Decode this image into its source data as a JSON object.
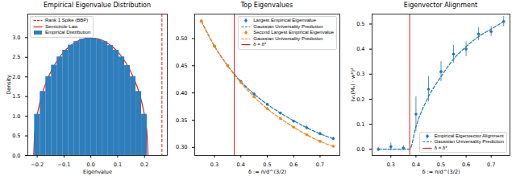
{
  "chart_data": [
    {
      "type": "histogram",
      "title": "Empirical Eigenvalue Distribution",
      "x_label": "Eigenvalue",
      "y_label": "Density",
      "xlim": [
        -0.235,
        0.285
      ],
      "xticks": [
        {
          "value": -0.2,
          "label": "−0.2"
        },
        {
          "value": -0.1,
          "label": "−0.1"
        },
        {
          "value": 0,
          "label": "0.0"
        },
        0.1,
        0.2
      ],
      "ylim": [
        0,
        3.6
      ],
      "yticks": [
        {
          "value": 0,
          "label": "0.0"
        },
        0.5,
        {
          "value": 1,
          "label": "1.0"
        },
        1.5,
        {
          "value": 2,
          "label": "2.0"
        },
        2.5,
        {
          "value": 3,
          "label": "3.0"
        }
      ],
      "grid": false,
      "legend": "upper left",
      "series": [
        {
          "name": "Rank 1 Spike (BBP)",
          "type": "vline",
          "x": 0.265,
          "color": "#e41a1c",
          "line_style": "dashed"
        },
        {
          "name": "Semicircle Law",
          "type": "line",
          "color": "#e41a1c",
          "line_style": "solid",
          "x": [
            -0.213,
            -0.21,
            -0.205,
            -0.2,
            -0.19,
            -0.18,
            -0.17,
            -0.16,
            -0.14,
            -0.12,
            -0.1,
            -0.08,
            -0.06,
            -0.04,
            -0.02,
            0,
            0.02,
            0.04,
            0.06,
            0.08,
            0.1,
            0.12,
            0.14,
            0.16,
            0.17,
            0.18,
            0.19,
            0.2,
            0.205,
            0.21,
            0.213
          ],
          "values": [
            0,
            0.5,
            0.81,
            1.03,
            1.35,
            1.6,
            1.8,
            1.97,
            2.25,
            2.47,
            2.64,
            2.77,
            2.87,
            2.94,
            2.98,
            2.99,
            2.98,
            2.94,
            2.87,
            2.77,
            2.64,
            2.47,
            2.25,
            1.97,
            1.8,
            1.6,
            1.35,
            1.03,
            0.81,
            0.5,
            0
          ]
        },
        {
          "name": "Empirical Distribution",
          "type": "histogram",
          "color": "#2f7ebc",
          "bins": [
            -0.21,
            -0.189,
            -0.168,
            -0.147,
            -0.126,
            -0.105,
            -0.084,
            -0.063,
            -0.042,
            -0.021,
            0,
            0.021,
            0.042,
            0.063,
            0.084,
            0.105,
            0.126,
            0.147,
            0.168,
            0.189,
            0.21
          ],
          "values": [
            1.05,
            1.63,
            2.01,
            2.3,
            2.51,
            2.68,
            2.81,
            2.9,
            2.96,
            2.99,
            2.98,
            2.95,
            2.9,
            2.8,
            2.68,
            2.51,
            2.29,
            2.01,
            1.63,
            1.05
          ]
        }
      ]
    },
    {
      "type": "line",
      "title": "Top Eigenvalues",
      "x_label": "δ := n/d^(3/2)",
      "xlim": [
        0.225,
        0.775
      ],
      "xticks": [
        0.3,
        0.4,
        0.5,
        0.6,
        0.7
      ],
      "ylim": [
        0.285,
        0.545
      ],
      "yticks": [
        {
          "value": 0.3,
          "label": "0.30"
        },
        0.35,
        {
          "value": 0.4,
          "label": "0.40"
        },
        0.45,
        {
          "value": 0.5,
          "label": "0.50"
        }
      ],
      "grid": false,
      "legend": "upper right",
      "series": [
        {
          "name": "Largest Empirical Eigenvalue",
          "type": "scatter",
          "marker": "circle",
          "color": "#1f77b4",
          "x": [
            0.25,
            0.3,
            0.35,
            0.4,
            0.45,
            0.5,
            0.55,
            0.6,
            0.65,
            0.7,
            0.75
          ],
          "values": [
            0.532,
            0.486,
            0.45,
            0.421,
            0.398,
            0.379,
            0.363,
            0.348,
            0.336,
            0.325,
            0.316
          ],
          "errors": [
            0.002,
            0.002,
            0.002,
            0.002,
            0.002,
            0.002,
            0.002,
            0.002,
            0.003,
            0.003,
            0.003
          ]
        },
        {
          "name": "Gaussian Universality Prediction",
          "type": "line",
          "line_style": "dashed",
          "color": "#1f77b4",
          "x": [
            0.25,
            0.3,
            0.35,
            0.4,
            0.45,
            0.5,
            0.55,
            0.6,
            0.65,
            0.7,
            0.75
          ],
          "values": [
            0.532,
            0.486,
            0.45,
            0.421,
            0.398,
            0.379,
            0.363,
            0.349,
            0.336,
            0.325,
            0.316
          ]
        },
        {
          "name": "Second Largest Empirical Eigenvalue",
          "type": "scatter",
          "marker": "circle",
          "color": "#ff7f0e",
          "x": [
            0.25,
            0.3,
            0.35,
            0.4,
            0.45,
            0.5,
            0.55,
            0.6,
            0.65,
            0.7,
            0.75
          ],
          "values": [
            0.532,
            0.486,
            0.45,
            0.419,
            0.393,
            0.371,
            0.353,
            0.337,
            0.323,
            0.311,
            0.302
          ],
          "errors": [
            0.002,
            0.002,
            0.002,
            0.002,
            0.002,
            0.002,
            0.002,
            0.002,
            0.002,
            0.002,
            0.002
          ]
        },
        {
          "name": "Gaussian Universality Prediction",
          "type": "line",
          "line_style": "dashed",
          "color": "#ff7f0e",
          "x": [
            0.25,
            0.3,
            0.35,
            0.4,
            0.45,
            0.5,
            0.55,
            0.6,
            0.65,
            0.7,
            0.75
          ],
          "values": [
            0.532,
            0.486,
            0.45,
            0.419,
            0.393,
            0.371,
            0.353,
            0.337,
            0.323,
            0.311,
            0.302
          ]
        },
        {
          "name": "δ = δ*",
          "type": "vline",
          "x": 0.375,
          "color": "#e41a1c",
          "line_style": "solid"
        }
      ]
    },
    {
      "type": "line",
      "title": "Eigenvector Alignment",
      "x_label": "δ := n/d^(3/2)",
      "y_label": "(v₁(Mₙ) · w*)²",
      "xlim": [
        0.225,
        0.775
      ],
      "xticks": [
        0.3,
        0.4,
        0.5,
        0.6,
        0.7
      ],
      "ylim": [
        -0.025,
        0.54
      ],
      "yticks": [
        {
          "value": 0,
          "label": "0.0"
        },
        0.1,
        0.2,
        0.3,
        0.4,
        0.5
      ],
      "grid": false,
      "legend": "lower right",
      "series": [
        {
          "name": "Empirical Eigenvector Alignment",
          "type": "scatter",
          "marker": "circle",
          "color": "#1f77b4",
          "x": [
            0.25,
            0.3,
            0.35,
            0.4,
            0.45,
            0.5,
            0.55,
            0.6,
            0.65,
            0.7,
            0.75
          ],
          "values": [
            0,
            0.01,
            0.005,
            0.14,
            0.24,
            0.31,
            0.38,
            0.4,
            0.46,
            0.47,
            0.51
          ],
          "errors": [
            0.008,
            0.015,
            0.01,
            0.07,
            0.05,
            0.04,
            0.035,
            0.03,
            0.025,
            0.02,
            0.02
          ]
        },
        {
          "name": "Gaussian Universality Prediction",
          "type": "line",
          "line_style": "dashed",
          "color": "#1f77b4",
          "x": [
            0.25,
            0.3,
            0.35,
            0.375,
            0.4,
            0.45,
            0.5,
            0.55,
            0.6,
            0.65,
            0.7,
            0.75
          ],
          "values": [
            0,
            0,
            0,
            0,
            0.09,
            0.21,
            0.29,
            0.36,
            0.41,
            0.45,
            0.48,
            0.51
          ]
        },
        {
          "name": "δ = δ*",
          "type": "vline",
          "x": 0.375,
          "color": "#e41a1c",
          "line_style": "solid"
        }
      ]
    }
  ]
}
